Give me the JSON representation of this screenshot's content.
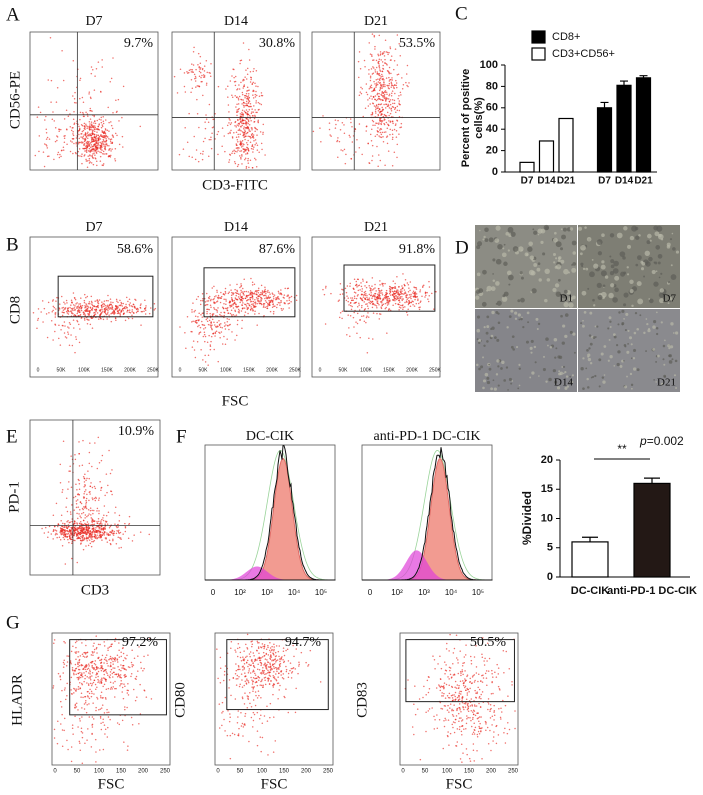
{
  "panels": {
    "a": {
      "letter": "A",
      "titles": [
        "D7",
        "D14",
        "D21"
      ],
      "percents": [
        "9.7%",
        "30.8%",
        "53.5%"
      ],
      "y_label": "CD56-PE",
      "x_label": "CD3-FITC"
    },
    "b": {
      "letter": "B",
      "titles": [
        "D7",
        "D14",
        "D21"
      ],
      "percents": [
        "58.6%",
        "87.6%",
        "91.8%"
      ],
      "y_label": "CD8",
      "x_label": "FSC",
      "x_ticks": [
        "0",
        "50K",
        "100K",
        "150K",
        "200K",
        "250K"
      ]
    },
    "d": {
      "letter": "D",
      "image_labels": [
        "D1",
        "D7",
        "D14",
        "D21"
      ]
    },
    "e": {
      "letter": "E",
      "percent": "10.9%",
      "y_label": "PD-1",
      "x_label": "CD3"
    },
    "f": {
      "letter": "F",
      "titles": [
        "DC-CIK",
        "anti-PD-1 DC-CIK"
      ],
      "x_ticks": [
        "0",
        "10²",
        "10³",
        "10⁴",
        "10⁵"
      ]
    },
    "g": {
      "letter": "G",
      "y_labels": [
        "HLADR",
        "CD80",
        "CD83"
      ],
      "percents": [
        "97.2%",
        "94.7%",
        "50.5%"
      ],
      "x_label": "FSC",
      "x_ticks": [
        "0",
        "50",
        "100",
        "150",
        "200",
        "250"
      ]
    }
  },
  "chart_data": [
    {
      "type": "bar",
      "letter": "C",
      "y_label": [
        "Percent of positive",
        "cells(%)"
      ],
      "categories": [
        "D7",
        "D14",
        "D21",
        "D7",
        "D14",
        "D21"
      ],
      "series": [
        {
          "name": "CD8+",
          "color": "#000000",
          "values": [
            null,
            null,
            null,
            60,
            81,
            88
          ],
          "errors": [
            null,
            null,
            null,
            5,
            4,
            2
          ]
        },
        {
          "name": "CD3+CD56+",
          "color": "#ffffff",
          "values": [
            9,
            29,
            50,
            null,
            null,
            null
          ],
          "errors": [
            null,
            null,
            null,
            null,
            null,
            null
          ]
        }
      ],
      "ylim": [
        0,
        100
      ],
      "yticks": [
        0,
        20,
        40,
        60,
        80,
        100
      ],
      "legend": "top-right"
    },
    {
      "type": "bar",
      "y_label": "%Divided",
      "categories": [
        "DC-CIK",
        "anti-PD-1 DC-CIK"
      ],
      "values": [
        6,
        16
      ],
      "errors": [
        0.8,
        0.9
      ],
      "colors": [
        "#ffffff",
        "#231815"
      ],
      "ylim": [
        0,
        20
      ],
      "yticks": [
        0,
        5,
        10,
        15,
        20
      ],
      "significance": "**",
      "p_value": {
        "symbol": "p",
        "text": "=0.002"
      }
    }
  ]
}
